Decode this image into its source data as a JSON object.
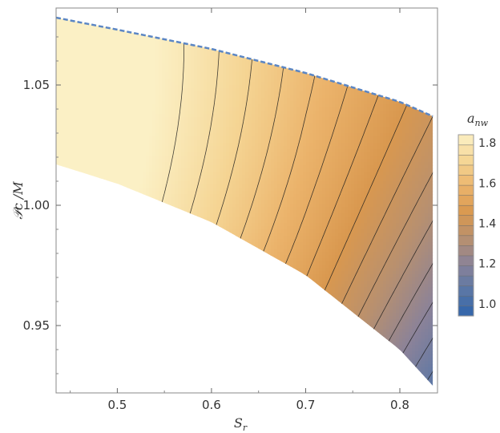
{
  "chart_data": {
    "type": "heatmap",
    "subtype": "contour",
    "xlabel": "S",
    "xlabel_sub": "r",
    "ylabel": "𝒫c /M",
    "legend_title": "a",
    "legend_title_sub": "nw",
    "xlim": [
      0.435,
      0.84
    ],
    "ylim": [
      0.922,
      1.082
    ],
    "x_ticks": [
      "0.5",
      "0.6",
      "0.7",
      "0.8"
    ],
    "y_ticks": [
      "0.95",
      "1.00",
      "1.05"
    ],
    "x_tick_values": [
      0.5,
      0.6,
      0.7,
      0.8
    ],
    "y_tick_values": [
      0.95,
      1.0,
      1.05
    ],
    "colorbar_ticks": [
      "1.0",
      "1.2",
      "1.4",
      "1.6",
      "1.8"
    ],
    "colorbar_tick_values": [
      1.0,
      1.2,
      1.4,
      1.6,
      1.8
    ],
    "value_range": [
      0.94,
      1.84
    ],
    "contour_levels": [
      0.95,
      1.0,
      1.05,
      1.1,
      1.15,
      1.2,
      1.25,
      1.3,
      1.35,
      1.4,
      1.45,
      1.5,
      1.55,
      1.6,
      1.65,
      1.7,
      1.75,
      1.8
    ],
    "upper_boundary": {
      "style": "dashed",
      "color": "#5b86c4",
      "x": [
        0.435,
        0.5,
        0.6,
        0.7,
        0.8,
        0.835
      ],
      "y": [
        1.078,
        1.073,
        1.065,
        1.055,
        1.043,
        1.037
      ]
    },
    "lower_boundary": {
      "x": [
        0.435,
        0.5,
        0.6,
        0.7,
        0.8,
        0.835
      ],
      "y": [
        1.017,
        1.009,
        0.993,
        0.971,
        0.94,
        0.925
      ]
    },
    "right_edge_x": 0.835,
    "colorscale": [
      "#2e63ab",
      "#5a77a6",
      "#8a8299",
      "#b8906f",
      "#d9984f",
      "#ebb36b",
      "#f5d594",
      "#fbf0c5"
    ]
  }
}
